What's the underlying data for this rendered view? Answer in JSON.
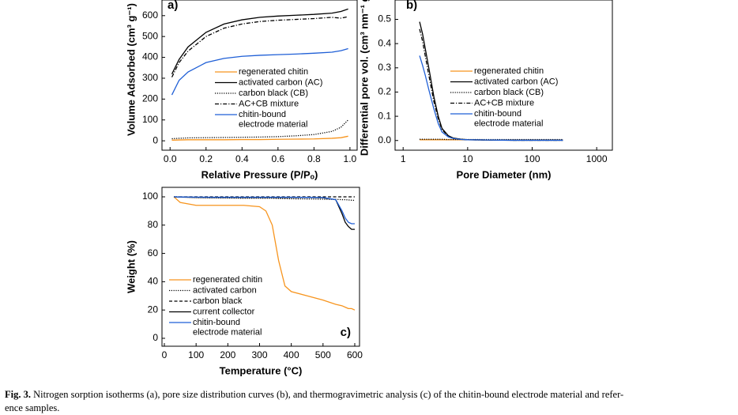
{
  "chart_data": [
    {
      "type": "line",
      "panel": "a)",
      "xlabel": "Relative Pressure (P/Pₒ)",
      "ylabel": "Volume Adsorbed (cm³ g⁻¹)",
      "xlim": [
        -0.045,
        1.04
      ],
      "ylim": [
        -45,
        675
      ],
      "xticks": [
        {
          "value": 0,
          "label": "0.0"
        },
        {
          "value": 0.2,
          "label": "0.2"
        },
        {
          "value": 0.4,
          "label": "0.4"
        },
        {
          "value": 0.6,
          "label": "0.6"
        },
        {
          "value": 0.8,
          "label": "0.8"
        },
        {
          "value": 1,
          "label": "1.0"
        }
      ],
      "yticks": [
        0,
        100,
        200,
        300,
        400,
        500,
        600
      ],
      "x": [
        0.01,
        0.05,
        0.1,
        0.2,
        0.3,
        0.4,
        0.5,
        0.6,
        0.7,
        0.8,
        0.9,
        0.95,
        0.99
      ],
      "series": [
        {
          "name": "regenerated chitin",
          "color": "#f7941d",
          "dash": "solid",
          "values": [
            3,
            4,
            5,
            5,
            5,
            6,
            6,
            7,
            8,
            9,
            12,
            15,
            22
          ]
        },
        {
          "name": "activated carbon (AC)",
          "color": "#000000",
          "dash": "solid",
          "values": [
            320,
            390,
            450,
            520,
            560,
            580,
            592,
            598,
            602,
            606,
            612,
            620,
            632
          ]
        },
        {
          "name": "carbon black (CB)",
          "color": "#000000",
          "dash": "dotted",
          "values": [
            10,
            12,
            14,
            15,
            16,
            17,
            18,
            20,
            24,
            30,
            45,
            65,
            100
          ]
        },
        {
          "name": "AC+CB mixture",
          "color": "#000000",
          "dash": "dashdot",
          "values": [
            305,
            375,
            430,
            500,
            540,
            560,
            572,
            578,
            582,
            586,
            592,
            588,
            595
          ]
        },
        {
          "name": "chitin-bound electrode material",
          "color": "#1f5fd6",
          "dash": "solid",
          "values": [
            220,
            290,
            330,
            375,
            395,
            405,
            410,
            413,
            416,
            420,
            425,
            432,
            442
          ]
        }
      ]
    },
    {
      "type": "line",
      "panel": "b)",
      "xlabel": "Pore Diameter (nm)",
      "ylabel": "Differential pore vol. (cm³ nm⁻¹ g⁻¹)",
      "xscale": "log",
      "xlim": [
        0.75,
        1750
      ],
      "ylim": [
        -0.04,
        0.58
      ],
      "xticks": [
        1,
        10,
        100,
        1000
      ],
      "yticks": [
        {
          "value": 0,
          "label": "0.0"
        },
        {
          "value": 0.1,
          "label": "0.1"
        },
        {
          "value": 0.2,
          "label": "0.2"
        },
        {
          "value": 0.3,
          "label": "0.3"
        },
        {
          "value": 0.4,
          "label": "0.4"
        },
        {
          "value": 0.5,
          "label": "0.5"
        }
      ],
      "x": [
        1.8,
        2,
        2.2,
        2.5,
        3,
        3.5,
        4,
        5,
        6,
        8,
        10,
        20,
        50,
        100,
        200,
        300
      ],
      "series": [
        {
          "name": "regenerated chitin",
          "color": "#f7941d",
          "dash": "solid",
          "values": [
            0.003,
            0.003,
            0.003,
            0.003,
            0.003,
            0.003,
            0.003,
            0.003,
            0.003,
            0.003,
            0.003,
            0.002,
            0.002,
            0.002,
            0.002,
            0.002
          ]
        },
        {
          "name": "activated carbon (AC)",
          "color": "#000000",
          "dash": "solid",
          "values": [
            0.49,
            0.44,
            0.38,
            0.3,
            0.18,
            0.1,
            0.05,
            0.02,
            0.01,
            0.005,
            0.003,
            0.002,
            0.001,
            0.001,
            0.001,
            0.001
          ]
        },
        {
          "name": "carbon black (CB)",
          "color": "#000000",
          "dash": "dotted",
          "values": [
            0.005,
            0.005,
            0.005,
            0.005,
            0.005,
            0.005,
            0.005,
            0.004,
            0.004,
            0.004,
            0.004,
            0.004,
            0.004,
            0.004,
            0.004,
            0.004
          ]
        },
        {
          "name": "AC+CB mixture",
          "color": "#000000",
          "dash": "dashdot",
          "values": [
            0.46,
            0.41,
            0.35,
            0.27,
            0.16,
            0.09,
            0.045,
            0.018,
            0.009,
            0.005,
            0.003,
            0.002,
            0.001,
            0.001,
            0.001,
            0.001
          ]
        },
        {
          "name": "chitin-bound electrode material",
          "color": "#1f5fd6",
          "dash": "solid",
          "values": [
            0.35,
            0.31,
            0.27,
            0.21,
            0.13,
            0.07,
            0.035,
            0.015,
            0.008,
            0.004,
            0.003,
            0.002,
            0.001,
            0.001,
            0.001,
            0.001
          ]
        }
      ]
    },
    {
      "type": "line",
      "panel": "c)",
      "xlabel": "Temperature (°C)",
      "ylabel": "Weight (%)",
      "xlim": [
        -7.5,
        615
      ],
      "ylim": [
        -5.6,
        106.7
      ],
      "xticks": [
        0,
        100,
        200,
        300,
        400,
        500,
        600
      ],
      "yticks": [
        0,
        20,
        40,
        60,
        80,
        100
      ],
      "x": [
        30,
        50,
        100,
        150,
        200,
        250,
        300,
        320,
        340,
        360,
        380,
        400,
        450,
        500,
        540,
        560,
        570,
        580,
        590,
        600
      ],
      "series": [
        {
          "name": "regenerated chitin",
          "color": "#f7941d",
          "dash": "solid",
          "values": [
            100,
            96,
            94,
            94,
            94,
            94,
            93,
            90,
            80,
            55,
            37,
            33,
            30,
            27,
            24,
            23,
            22,
            21,
            21,
            20
          ]
        },
        {
          "name": "activated carbon",
          "color": "#000000",
          "dash": "dotted",
          "values": [
            100,
            100,
            99.5,
            99.3,
            99.2,
            99,
            99,
            99,
            99,
            98.8,
            98.7,
            98.6,
            98.5,
            98.3,
            98.2,
            98,
            98,
            97.8,
            97.6,
            97.5
          ]
        },
        {
          "name": "carbon black",
          "color": "#000000",
          "dash": "dashed",
          "values": [
            100,
            100,
            100,
            100,
            100,
            100,
            100,
            100,
            100,
            100,
            100,
            100,
            100,
            100,
            100,
            100,
            100,
            100,
            100,
            100
          ]
        },
        {
          "name": "current collector",
          "color": "#000000",
          "dash": "solid",
          "values": [
            100,
            99.8,
            99.6,
            99.5,
            99.5,
            99.5,
            99.5,
            99.5,
            99.5,
            99.5,
            99.5,
            99.5,
            99.5,
            99.3,
            98,
            88,
            82,
            79,
            77,
            77
          ]
        },
        {
          "name": "chitin-bound electrode material",
          "color": "#1f5fd6",
          "dash": "solid",
          "values": [
            100,
            99.9,
            99.8,
            99.7,
            99.7,
            99.7,
            99.7,
            99.7,
            99.7,
            99.7,
            99.7,
            99.7,
            99.6,
            99.5,
            98,
            90,
            85,
            82,
            81,
            81
          ]
        }
      ]
    }
  ],
  "caption": {
    "label": "Fig. 3.",
    "lines": [
      "Nitrogen sorption isotherms (a), pore size distribution curves (b), and thermogravimetric analysis (c) of the chitin-bound electrode material and refer-",
      "ence samples."
    ]
  }
}
